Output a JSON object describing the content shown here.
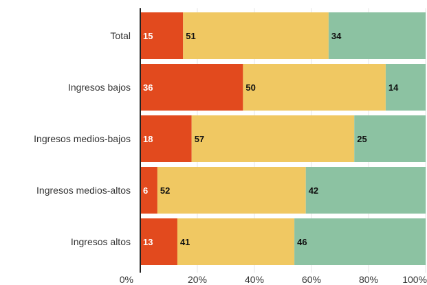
{
  "chart_data": {
    "type": "bar",
    "orientation": "horizontal",
    "stacked": true,
    "title": "",
    "xlabel": "",
    "ylabel": "",
    "xlim": [
      0,
      100
    ],
    "grid": true,
    "legend": "none",
    "categories": [
      "Total",
      "Ingresos bajos",
      "Ingresos medios-bajos",
      "Ingresos medios-altos",
      "Ingresos altos"
    ],
    "series": [
      {
        "color": "#e24a1e",
        "label_color": "#ffffff",
        "values": [
          15,
          36,
          18,
          6,
          13
        ]
      },
      {
        "color": "#f0c862",
        "label_color": "#111111",
        "values": [
          51,
          50,
          57,
          52,
          41
        ]
      },
      {
        "color": "#8cc2a2",
        "label_color": "#111111",
        "values": [
          34,
          14,
          25,
          42,
          46
        ]
      }
    ],
    "x_ticks": [
      {
        "value": 0,
        "label": "0%"
      },
      {
        "value": 20,
        "label": "20%"
      },
      {
        "value": 40,
        "label": "40%"
      },
      {
        "value": 60,
        "label": "60%"
      },
      {
        "value": 80,
        "label": "80%"
      },
      {
        "value": 100,
        "label": "100%"
      }
    ]
  }
}
